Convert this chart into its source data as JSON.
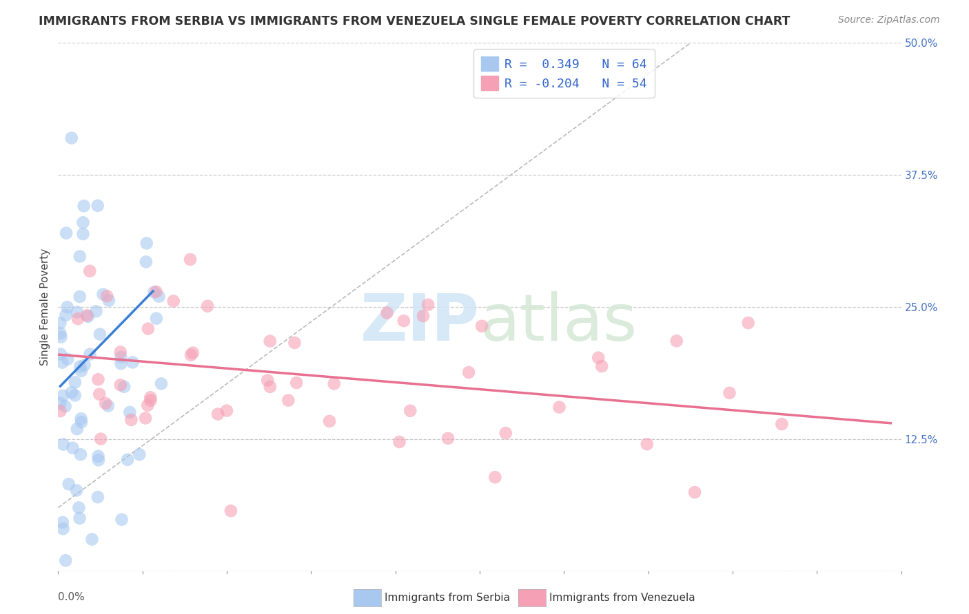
{
  "title": "IMMIGRANTS FROM SERBIA VS IMMIGRANTS FROM VENEZUELA SINGLE FEMALE POVERTY CORRELATION CHART",
  "source": "Source: ZipAtlas.com",
  "ylabel": "Single Female Poverty",
  "x_min": 0.0,
  "x_max": 0.4,
  "y_min": 0.0,
  "y_max": 0.5,
  "y_ticks": [
    0.0,
    0.125,
    0.25,
    0.375,
    0.5
  ],
  "y_tick_labels_right": [
    "",
    "12.5%",
    "25.0%",
    "37.5%",
    "50.0%"
  ],
  "serbia_R": 0.349,
  "serbia_N": 64,
  "venezuela_R": -0.204,
  "venezuela_N": 54,
  "serbia_color": "#a8c8f0",
  "venezuela_color": "#f5a0b5",
  "serbia_line_color": "#3a7fd5",
  "venezuela_line_color": "#e87090",
  "watermark_zip": "ZIP",
  "watermark_atlas": "atlas",
  "legend_label_serbia": "Immigrants from Serbia",
  "legend_label_venezuela": "Immigrants from Venezuela",
  "title_fontsize": 12.5,
  "source_fontsize": 10,
  "tick_fontsize": 11,
  "legend_fontsize": 13,
  "ylabel_fontsize": 11,
  "scatter_size": 180,
  "scatter_alpha": 0.6,
  "serbia_line_x": [
    0.001,
    0.045
  ],
  "serbia_line_y": [
    0.175,
    0.265
  ],
  "venezuela_line_x": [
    0.0,
    0.395
  ],
  "venezuela_line_y": [
    0.205,
    0.14
  ]
}
